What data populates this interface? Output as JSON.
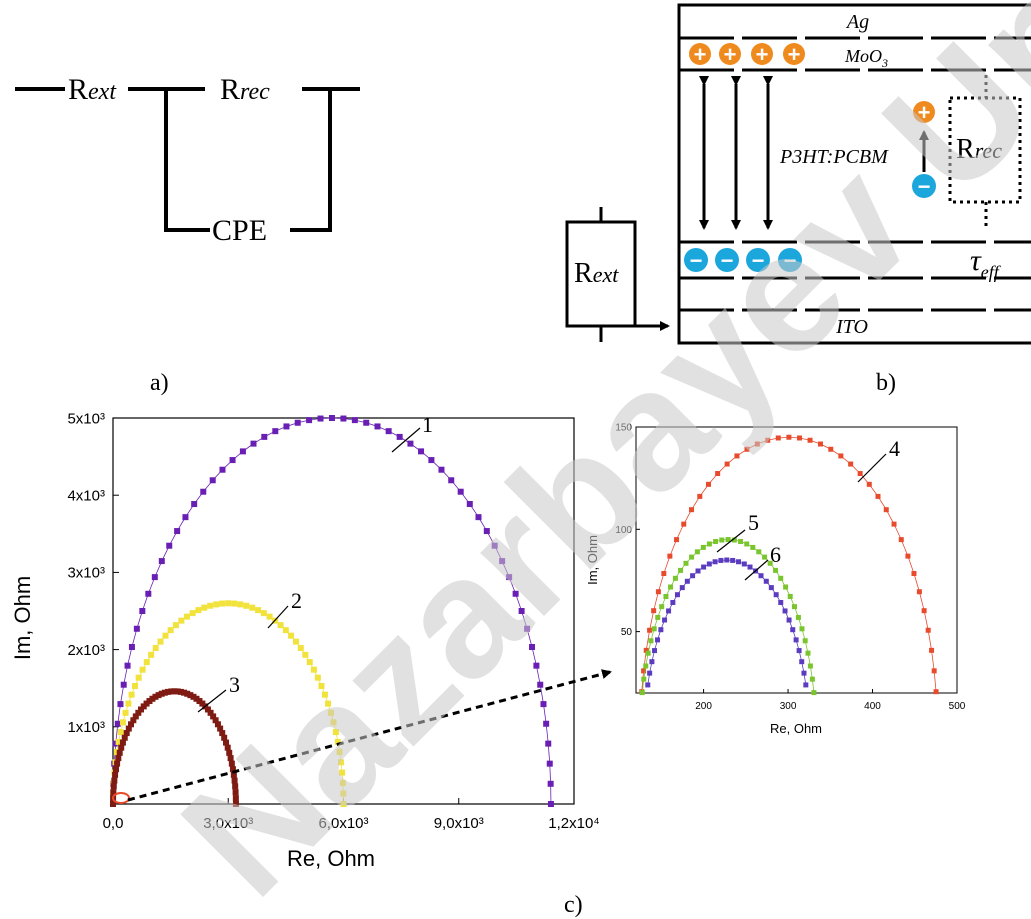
{
  "panel_a": {
    "label": "a)",
    "r_ext": {
      "main": "R",
      "sub": "ext"
    },
    "r_rec": {
      "main": "R",
      "sub": "rec"
    },
    "cpe": "CPE"
  },
  "panel_b": {
    "label": "b)",
    "layers": {
      "ag": "Ag",
      "moo3": {
        "main": "MoO",
        "sub": "3"
      },
      "active": "P3HT:PCBM",
      "ito": "ITO"
    },
    "r_rec": {
      "main": "R",
      "sub": "rec"
    },
    "r_ext": {
      "main": "R",
      "sub": "ext"
    },
    "tau": {
      "main": "τ",
      "sub": "eff"
    },
    "hole_symbol": "+",
    "electron_symbol": "−"
  },
  "panel_c": {
    "label": "c)",
    "watermark": "Nazarbayev University",
    "colors": {
      "1": "#6a1fb4",
      "2": "#f2e23c",
      "3": "#7e1b12",
      "4": "#e84a2c",
      "5": "#7ac52e",
      "6": "#5b3cc0"
    }
  },
  "chart_data": [
    {
      "type": "scatter",
      "xlabel": "Re, Ohm",
      "ylabel": "Im, Ohm",
      "xlim": [
        0,
        12000
      ],
      "ylim": [
        0,
        5000
      ],
      "xticks": [
        0,
        3000,
        6000,
        9000,
        12000
      ],
      "xtick_labels": [
        "0,0",
        "3,0x10³",
        "6,0x10³",
        "9,0x10³",
        "1,2x10⁴"
      ],
      "yticks": [
        1000,
        2000,
        3000,
        4000,
        5000
      ],
      "ytick_labels": [
        "1x10³",
        "2x10³",
        "3x10³",
        "4x10³",
        "5x10³"
      ],
      "series": [
        {
          "name": "1",
          "r0": 0,
          "r1": 11400,
          "peak": 5000,
          "color": "#6a1fb4"
        },
        {
          "name": "2",
          "r0": 0,
          "r1": 6000,
          "peak": 2600,
          "color": "#f2e23c"
        },
        {
          "name": "3",
          "r0": 0,
          "r1": 3200,
          "peak": 1460,
          "color": "#7e1b12"
        }
      ]
    },
    {
      "type": "scatter",
      "xlabel": "Re, Ohm",
      "ylabel": "Im, Ohm",
      "xlim": [
        120,
        500
      ],
      "ylim": [
        20,
        150
      ],
      "xticks": [
        200,
        300,
        400,
        500
      ],
      "xtick_labels": [
        "200",
        "300",
        "400",
        "500"
      ],
      "yticks": [
        50,
        100,
        150
      ],
      "ytick_labels": [
        "50",
        "100",
        "150"
      ],
      "series": [
        {
          "name": "4",
          "r0": 125,
          "r1": 477,
          "peak": 145,
          "color": "#e84a2c"
        },
        {
          "name": "5",
          "r0": 125,
          "r1": 333,
          "peak": 95,
          "color": "#7ac52e"
        },
        {
          "name": "6",
          "r0": 130,
          "r1": 325,
          "peak": 85,
          "color": "#5b3cc0"
        }
      ]
    }
  ]
}
